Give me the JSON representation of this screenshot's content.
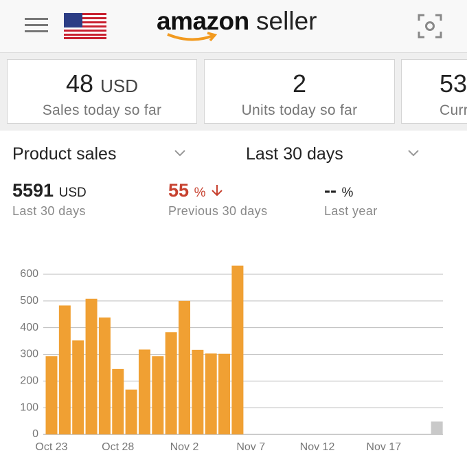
{
  "header": {
    "logo_word": "amazon",
    "logo_suffix": "seller"
  },
  "cards": [
    {
      "value": "48",
      "unit": "USD",
      "label": "Sales today so far"
    },
    {
      "value": "2",
      "label": "Units today so far"
    },
    {
      "value": "53",
      "label": "Curr"
    }
  ],
  "selectors": {
    "metric": "Product sales",
    "period": "Last 30 days"
  },
  "stats": [
    {
      "value": "5591",
      "unit": "USD",
      "label": "Last 30 days"
    },
    {
      "value": "55",
      "unit": "%",
      "label": "Previous 30 days"
    },
    {
      "value": "--",
      "unit": "%",
      "label": "Last year"
    }
  ],
  "chart_data": {
    "type": "bar",
    "categories": [
      "Oct 23",
      null,
      null,
      null,
      null,
      "Oct 28",
      null,
      null,
      null,
      null,
      "Nov 2",
      null,
      null,
      null,
      null,
      "Nov 7",
      null,
      null,
      null,
      null,
      "Nov 12",
      null,
      null,
      null,
      null,
      "Nov 17",
      null,
      null,
      null,
      null
    ],
    "values": [
      293,
      483,
      352,
      508,
      438,
      245,
      168,
      318,
      293,
      383,
      500,
      317,
      303,
      302,
      632,
      0,
      0,
      0,
      0,
      0,
      0,
      0,
      0,
      0,
      0,
      0,
      0,
      0,
      0,
      48
    ],
    "color": "#f0a033",
    "today_color": "#c9c9c9",
    "ylim": [
      0,
      600
    ],
    "yticks": [
      0,
      100,
      200,
      300,
      400,
      500,
      600
    ],
    "grid": true
  }
}
